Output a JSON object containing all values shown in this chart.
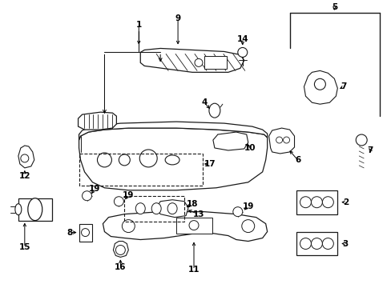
{
  "bg_color": "#ffffff",
  "line_color": "#1a1a1a",
  "fig_w": 4.89,
  "fig_h": 3.6,
  "dpi": 100
}
